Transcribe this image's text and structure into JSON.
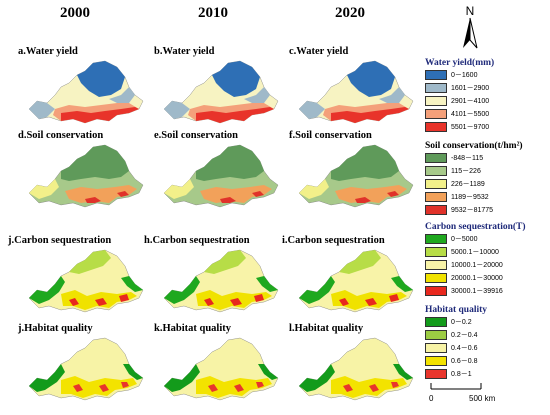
{
  "years": [
    "2000",
    "2010",
    "2020"
  ],
  "panels": [
    {
      "label": "a.Water yield",
      "service": "water"
    },
    {
      "label": "b.Water yield",
      "service": "water"
    },
    {
      "label": "c.Water yield",
      "service": "water"
    },
    {
      "label": "d.Soil conservation",
      "service": "soil"
    },
    {
      "label": "e.Soil conservation",
      "service": "soil"
    },
    {
      "label": "f.Soil conservation",
      "service": "soil"
    },
    {
      "label": "j.Carbon sequestration",
      "service": "carbon"
    },
    {
      "label": "h.Carbon sequestration",
      "service": "carbon"
    },
    {
      "label": "i.Carbon sequestration",
      "service": "carbon"
    },
    {
      "label": "j.Habitat quality",
      "service": "habitat"
    },
    {
      "label": "k.Habitat quality",
      "service": "habitat"
    },
    {
      "label": "l.Habitat quality",
      "service": "habitat"
    }
  ],
  "legends": {
    "water": {
      "title": "Water yield(mm)",
      "items": [
        {
          "label": "0－1600",
          "color": "#2e6fb5"
        },
        {
          "label": "1601－2900",
          "color": "#9fb9c9"
        },
        {
          "label": "2901－4100",
          "color": "#f7f3c2"
        },
        {
          "label": "4101－5500",
          "color": "#f4a07a"
        },
        {
          "label": "5501－9700",
          "color": "#e8332a"
        }
      ]
    },
    "soil": {
      "title": "Soil conservation(t/hm²)",
      "items": [
        {
          "label": "-848－115",
          "color": "#5f9a5a"
        },
        {
          "label": "115－226",
          "color": "#a7c98a"
        },
        {
          "label": "226－1189",
          "color": "#f2f08a"
        },
        {
          "label": "1189－9532",
          "color": "#f2a15a"
        },
        {
          "label": "9532－81775",
          "color": "#e0322a"
        }
      ]
    },
    "carbon": {
      "title": "Carbon sequestration(T)",
      "items": [
        {
          "label": "0－5000",
          "color": "#1fa81f"
        },
        {
          "label": "5000.1－10000",
          "color": "#b7dd47"
        },
        {
          "label": "10000.1－20000",
          "color": "#f8f3a8"
        },
        {
          "label": "20000.1－30000",
          "color": "#f0e200"
        },
        {
          "label": "30000.1－39916",
          "color": "#e8281e"
        }
      ]
    },
    "habitat": {
      "title": "Habitat quality",
      "items": [
        {
          "label": "0－0.2",
          "color": "#139b1b"
        },
        {
          "label": "0.2－0.4",
          "color": "#9ccc43"
        },
        {
          "label": "0.4－0.6",
          "color": "#f7f3a6"
        },
        {
          "label": "0.6－0.8",
          "color": "#f3e300"
        },
        {
          "label": "0.8－1",
          "color": "#e8352c"
        }
      ]
    }
  },
  "compass": {
    "label": "N"
  },
  "scale": {
    "start": "0",
    "end": "500 km"
  }
}
